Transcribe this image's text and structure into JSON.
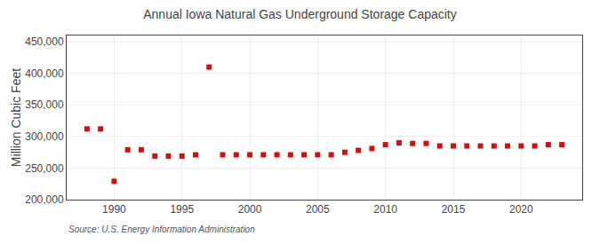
{
  "chart_data": {
    "type": "scatter",
    "title": "Annual Iowa Natural Gas Underground Storage Capacity",
    "ylabel": "Million Cubic Feet",
    "annotations": [
      "Source: U.S. Energy Information Administration"
    ],
    "x": [
      1988,
      1989,
      1990,
      1991,
      1992,
      1993,
      1994,
      1995,
      1996,
      1997,
      1998,
      1999,
      2000,
      2001,
      2002,
      2003,
      2004,
      2005,
      2006,
      2007,
      2008,
      2009,
      2010,
      2011,
      2012,
      2013,
      2014,
      2015,
      2016,
      2017,
      2018,
      2019,
      2020,
      2021,
      2022,
      2023
    ],
    "values": [
      312000,
      312000,
      229000,
      279000,
      279000,
      269000,
      269000,
      269000,
      271000,
      410000,
      271000,
      271000,
      271000,
      271000,
      271000,
      271000,
      271000,
      271000,
      271000,
      275000,
      278000,
      281000,
      287000,
      290000,
      289000,
      289000,
      285000,
      285000,
      285000,
      285000,
      285000,
      285000,
      285000,
      285000,
      287000,
      287000
    ],
    "color": "#cc1111",
    "marker": "square",
    "xlim": [
      1986.5,
      2024.5
    ],
    "xticks": [
      1990,
      1995,
      2000,
      2005,
      2010,
      2015,
      2020
    ],
    "ylim": [
      200000,
      460000
    ],
    "yticks": [
      {
        "value": 200000,
        "label": "200,000"
      },
      {
        "value": 250000,
        "label": "250,000"
      },
      {
        "value": 300000,
        "label": "300,000"
      },
      {
        "value": 350000,
        "label": "350,000"
      },
      {
        "value": 400000,
        "label": "400,000"
      },
      {
        "value": 450000,
        "label": "450,000"
      }
    ],
    "grid": true
  }
}
